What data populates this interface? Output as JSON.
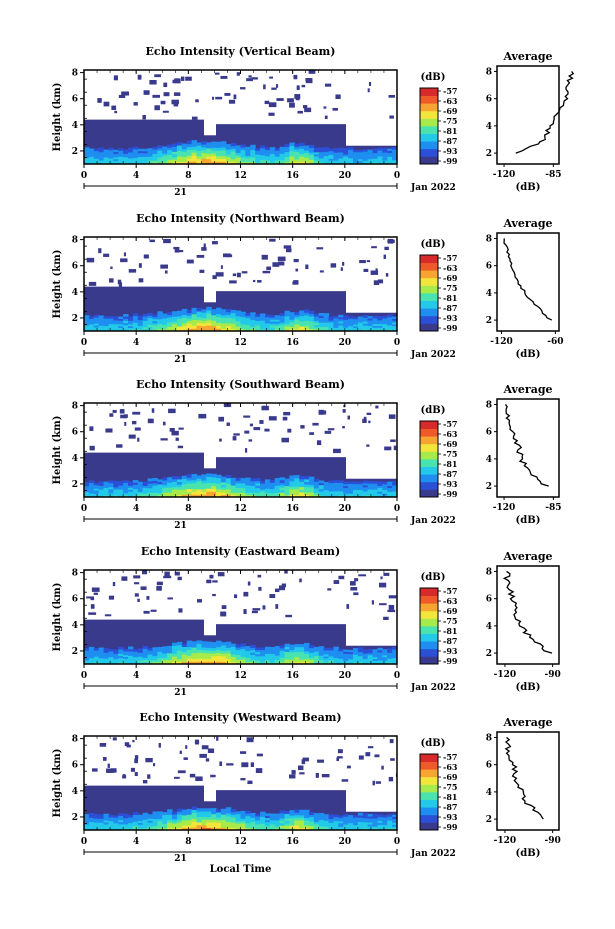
{
  "chart_data": {
    "type": "heatmap",
    "x_ticks": [
      "0",
      "4",
      "8",
      "12",
      "16",
      "20",
      "0"
    ],
    "date_label": "21",
    "date_suffix": "Jan 2022",
    "ylabel": "Height (km)",
    "y_ticks": [
      "2",
      "4",
      "6",
      "8"
    ],
    "colorbar_unit": "(dB)",
    "colorbar_ticks": [
      "-57",
      "-63",
      "-69",
      "-75",
      "-81",
      "-87",
      "-93",
      "-99"
    ],
    "colormap": [
      "#3a3a8c",
      "#2b4fd6",
      "#1e8ef0",
      "#22c9e8",
      "#49e3b0",
      "#a6ea4c",
      "#f2e63a",
      "#f7a531",
      "#f05a2a",
      "#d82a2a"
    ],
    "xlabel": "Local Time",
    "profile_title": "Average",
    "profile_xlabel": "(dB)",
    "profile_y_ticks": [
      "2",
      "4",
      "6",
      "8"
    ],
    "panels": [
      {
        "title": "Echo Intensity (Vertical Beam)",
        "profile_x_ticks": [
          "-120",
          "-85"
        ],
        "profile": [
          [
            2.0,
            -112
          ],
          [
            3.0,
            -90
          ],
          [
            4.0,
            -88
          ],
          [
            5.0,
            -80
          ],
          [
            6.0,
            -76
          ],
          [
            7.0,
            -74
          ],
          [
            8.0,
            -72
          ]
        ]
      },
      {
        "title": "Echo Intensity (Northward Beam)",
        "profile_x_ticks": [
          "-120",
          "-60"
        ],
        "profile": [
          [
            2.0,
            -65
          ],
          [
            3.0,
            -80
          ],
          [
            4.0,
            -94
          ],
          [
            5.0,
            -104
          ],
          [
            6.0,
            -108
          ],
          [
            7.0,
            -112
          ],
          [
            8.0,
            -117
          ]
        ]
      },
      {
        "title": "Echo Intensity (Southward Beam)",
        "profile_x_ticks": [
          "-120",
          "-85"
        ],
        "profile": [
          [
            2.0,
            -90
          ],
          [
            3.0,
            -102
          ],
          [
            4.0,
            -108
          ],
          [
            5.0,
            -110
          ],
          [
            6.0,
            -114
          ],
          [
            7.0,
            -117
          ],
          [
            8.0,
            -119
          ]
        ]
      },
      {
        "title": "Echo Intensity (Eastward Beam)",
        "profile_x_ticks": [
          "-120",
          "-90"
        ],
        "profile": [
          [
            2.0,
            -92
          ],
          [
            3.0,
            -103
          ],
          [
            4.0,
            -110
          ],
          [
            5.0,
            -113
          ],
          [
            6.0,
            -115
          ],
          [
            7.0,
            -118
          ],
          [
            8.0,
            -119
          ]
        ]
      },
      {
        "title": "Echo Intensity (Westward Beam)",
        "profile_x_ticks": [
          "-120",
          "-90"
        ],
        "profile": [
          [
            2.0,
            -94
          ],
          [
            3.0,
            -105
          ],
          [
            4.0,
            -110
          ],
          [
            5.0,
            -113
          ],
          [
            6.0,
            -115
          ],
          [
            7.0,
            -118
          ],
          [
            8.0,
            -119
          ]
        ]
      }
    ]
  }
}
